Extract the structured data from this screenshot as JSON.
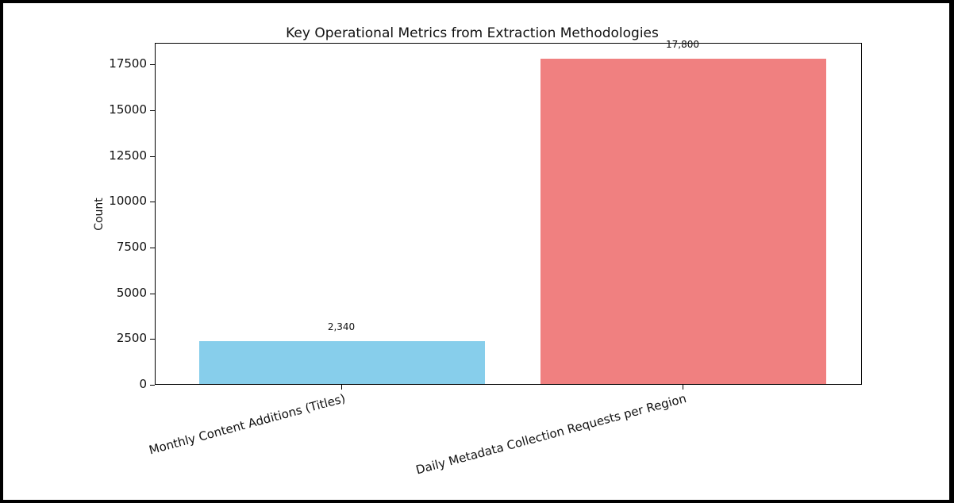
{
  "chart_data": {
    "type": "bar",
    "title": "Key Operational Metrics from Extraction Methodologies",
    "xlabel": "",
    "ylabel": "Count",
    "categories": [
      "Monthly Content Additions (Titles)",
      "Daily Metadata Collection Requests per Region"
    ],
    "values": [
      2340,
      17800
    ],
    "value_labels": [
      "2,340",
      "17,800"
    ],
    "colors": [
      "#87ceeb",
      "#f08080"
    ],
    "ylim": [
      0,
      18690
    ],
    "yticks": [
      0,
      2500,
      5000,
      7500,
      10000,
      12500,
      15000,
      17500
    ],
    "ytick_labels": [
      "0",
      "2500",
      "5000",
      "7500",
      "10000",
      "12500",
      "15000",
      "17500"
    ],
    "grid": false,
    "legend": null
  }
}
